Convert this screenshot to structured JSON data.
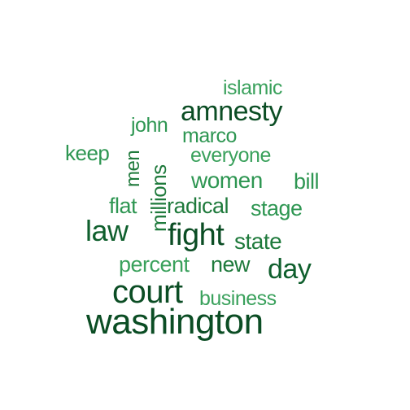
{
  "words": {
    "islamic": "islamic",
    "amnesty": "amnesty",
    "john": "john",
    "marco": "marco",
    "keep": "keep",
    "men": "men",
    "millions": "millions",
    "everyone": "everyone",
    "women": "women",
    "bill": "bill",
    "flat": "flat",
    "radical": "radical",
    "stage": "stage",
    "law": "law",
    "fight": "fight",
    "state": "state",
    "percent": "percent",
    "new": "new",
    "day": "day",
    "court": "court",
    "business": "business",
    "washington": "washington"
  },
  "colors": {
    "darkest": "#0b4d24",
    "dark": "#0f5f2d",
    "mid": "#1f7a3c",
    "light": "#2e9652",
    "lightest": "#3aa15c"
  }
}
